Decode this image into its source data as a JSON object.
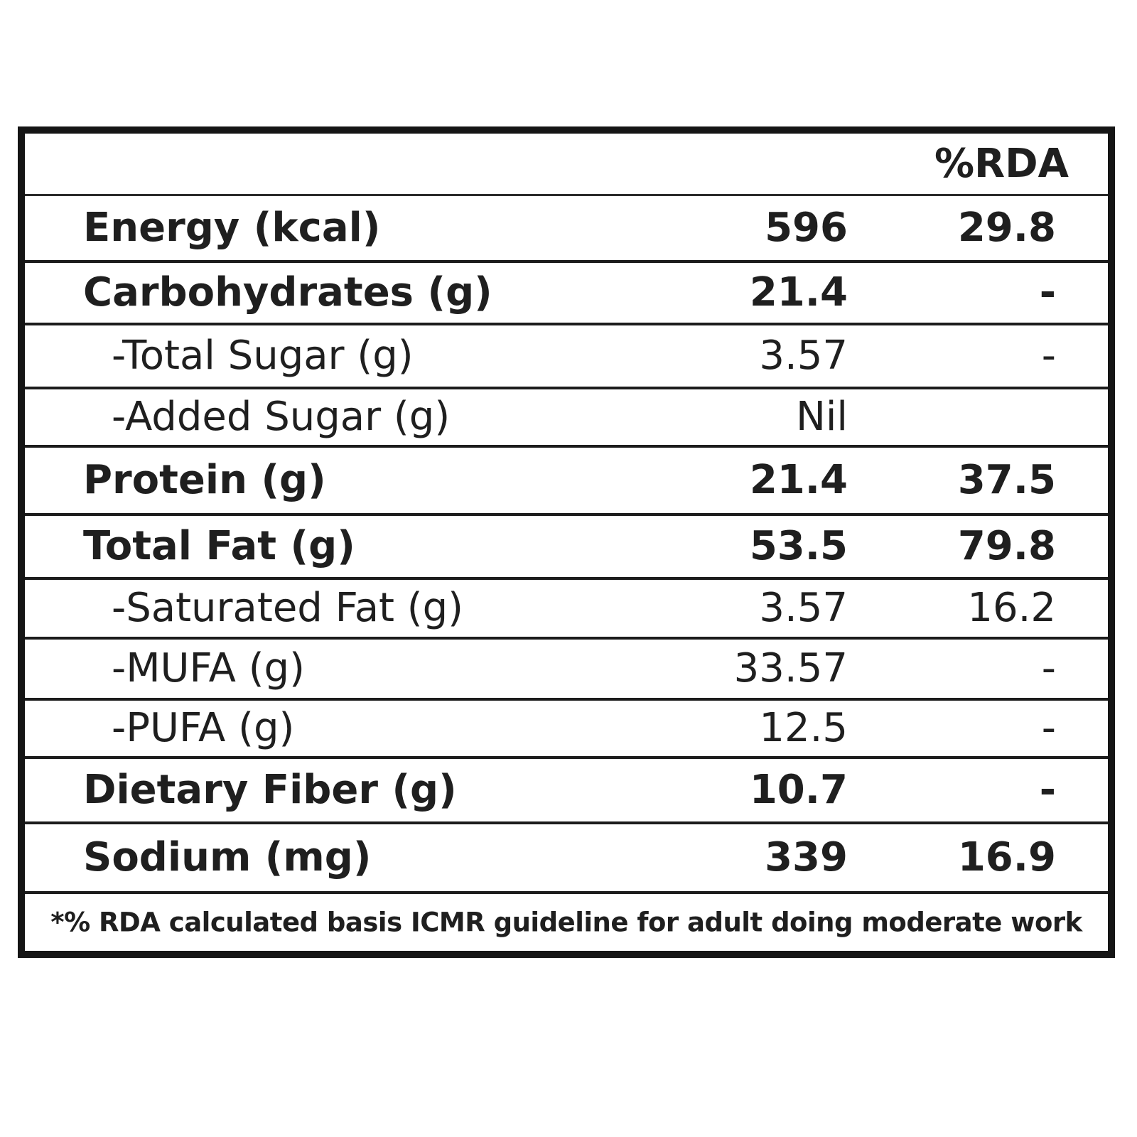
{
  "header": {
    "rda_label": "%RDA"
  },
  "rows": [
    {
      "name": "Energy (kcal)",
      "value": "596",
      "rda": "29.8"
    },
    {
      "name": "Carbohydrates (g)",
      "value": "21.4",
      "rda": "-"
    },
    {
      "name": "-Total Sugar (g)",
      "value": "3.57",
      "rda": "-"
    },
    {
      "name": "-Added Sugar (g)",
      "value": "Nil",
      "rda": ""
    },
    {
      "name": "Protein (g)",
      "value": "21.4",
      "rda": "37.5"
    },
    {
      "name": "Total Fat (g)",
      "value": "53.5",
      "rda": "79.8"
    },
    {
      "name": "-Saturated Fat (g)",
      "value": "3.57",
      "rda": "16.2"
    },
    {
      "name": "-MUFA (g)",
      "value": "33.57",
      "rda": "-"
    },
    {
      "name": "-PUFA (g)",
      "value": "12.5",
      "rda": "-"
    },
    {
      "name": "Dietary Fiber (g)",
      "value": "10.7",
      "rda": "-"
    },
    {
      "name": "Sodium (mg)",
      "value": "339",
      "rda": "16.9"
    }
  ],
  "footnote": "*% RDA calculated basis ICMR guideline for adult doing moderate work"
}
